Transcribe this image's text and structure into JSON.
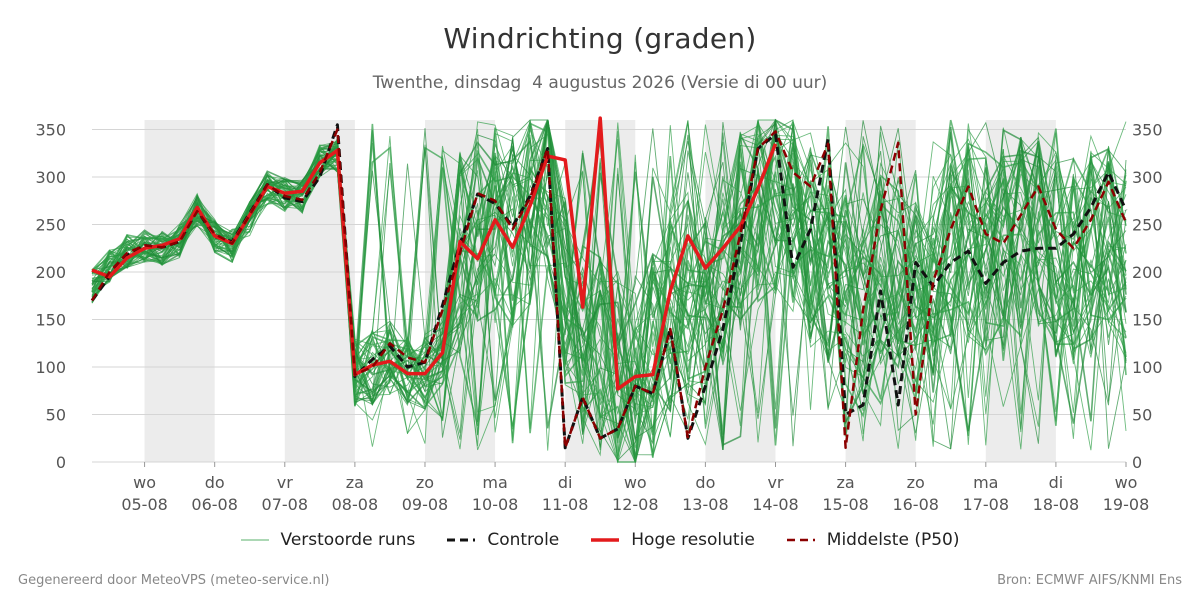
{
  "title": "Windrichting (graden)",
  "subtitle": "Twenthe, dinsdag  4 augustus 2026 (Versie di 00 uur)",
  "footer_left": "Gegenereerd door MeteoVPS (meteo-service.nl)",
  "footer_right": "Bron: ECMWF AIFS/KNMI Ens",
  "legend": [
    {
      "label": "Verstoorde runs",
      "style": "ensemble",
      "color": "#2e9e46"
    },
    {
      "label": "Controle",
      "style": "dashed",
      "color": "#111111"
    },
    {
      "label": "Hoge resolutie",
      "style": "solid",
      "color": "#e31a1c"
    },
    {
      "label": "Middelste (P50)",
      "style": "dashed",
      "color": "#8b0000"
    }
  ],
  "chart_data": {
    "type": "line",
    "ylim": [
      0,
      360
    ],
    "yticks": [
      0,
      50,
      100,
      150,
      200,
      250,
      300,
      350
    ],
    "xlim": [
      -0.75,
      14
    ],
    "x_ticks": [
      {
        "x": 0,
        "day": "wo",
        "date": "05-08"
      },
      {
        "x": 1,
        "day": "do",
        "date": "06-08"
      },
      {
        "x": 2,
        "day": "vr",
        "date": "07-08"
      },
      {
        "x": 3,
        "day": "za",
        "date": "08-08"
      },
      {
        "x": 4,
        "day": "zo",
        "date": "09-08"
      },
      {
        "x": 5,
        "day": "ma",
        "date": "10-08"
      },
      {
        "x": 6,
        "day": "di",
        "date": "11-08"
      },
      {
        "x": 7,
        "day": "wo",
        "date": "12-08"
      },
      {
        "x": 8,
        "day": "do",
        "date": "13-08"
      },
      {
        "x": 9,
        "day": "vr",
        "date": "14-08"
      },
      {
        "x": 10,
        "day": "za",
        "date": "15-08"
      },
      {
        "x": 11,
        "day": "zo",
        "date": "16-08"
      },
      {
        "x": 12,
        "day": "ma",
        "date": "17-08"
      },
      {
        "x": 13,
        "day": "di",
        "date": "18-08"
      },
      {
        "x": 14,
        "day": "wo",
        "date": "19-08"
      }
    ],
    "shaded_days": [
      [
        0,
        1
      ],
      [
        2,
        3
      ],
      [
        4,
        5
      ],
      [
        6,
        7
      ],
      [
        8,
        9
      ],
      [
        10,
        11
      ],
      [
        12,
        13
      ]
    ],
    "grid": true,
    "legend_position": "bottom",
    "ensemble_members": 50,
    "ensemble_mean": [
      [
        -0.75,
        185
      ],
      [
        -0.5,
        205
      ],
      [
        -0.25,
        222
      ],
      [
        0,
        226
      ],
      [
        0.25,
        225
      ],
      [
        0.5,
        233
      ],
      [
        0.75,
        266
      ],
      [
        1,
        238
      ],
      [
        1.25,
        228
      ],
      [
        1.5,
        256
      ],
      [
        1.75,
        288
      ],
      [
        2,
        282
      ],
      [
        2.25,
        280
      ],
      [
        2.5,
        318
      ],
      [
        2.75,
        322
      ],
      [
        3,
        92
      ],
      [
        3.25,
        100
      ],
      [
        3.5,
        110
      ],
      [
        3.75,
        98
      ],
      [
        4,
        95
      ],
      [
        4.25,
        120
      ],
      [
        4.5,
        220
      ],
      [
        4.75,
        255
      ],
      [
        5,
        250
      ],
      [
        5.25,
        245
      ],
      [
        5.5,
        270
      ],
      [
        5.75,
        300
      ],
      [
        6,
        190
      ],
      [
        6.25,
        120
      ],
      [
        6.5,
        110
      ],
      [
        6.75,
        100
      ],
      [
        7,
        95
      ],
      [
        7.25,
        110
      ],
      [
        7.5,
        160
      ],
      [
        7.75,
        180
      ],
      [
        8,
        170
      ],
      [
        8.25,
        210
      ],
      [
        8.5,
        240
      ],
      [
        8.75,
        270
      ],
      [
        9,
        280
      ],
      [
        9.25,
        260
      ],
      [
        9.5,
        230
      ],
      [
        9.75,
        210
      ],
      [
        10,
        190
      ],
      [
        10.25,
        180
      ],
      [
        10.5,
        200
      ],
      [
        10.75,
        190
      ],
      [
        11,
        170
      ],
      [
        11.25,
        180
      ],
      [
        11.5,
        220
      ],
      [
        11.75,
        230
      ],
      [
        12,
        220
      ],
      [
        12.25,
        210
      ],
      [
        12.5,
        230
      ],
      [
        12.75,
        240
      ],
      [
        13,
        220
      ],
      [
        13.25,
        210
      ],
      [
        13.5,
        220
      ],
      [
        13.75,
        230
      ],
      [
        14,
        200
      ]
    ],
    "series": [
      {
        "name": "Controle",
        "color": "#111111",
        "dash": "8,5",
        "width": 3,
        "points": [
          [
            -0.75,
            170
          ],
          [
            -0.5,
            195
          ],
          [
            -0.25,
            218
          ],
          [
            0,
            228
          ],
          [
            0.25,
            226
          ],
          [
            0.5,
            232
          ],
          [
            0.75,
            265
          ],
          [
            1,
            237
          ],
          [
            1.25,
            232
          ],
          [
            1.5,
            262
          ],
          [
            1.75,
            292
          ],
          [
            2,
            278
          ],
          [
            2.25,
            274
          ],
          [
            2.5,
            300
          ],
          [
            2.75,
            355
          ],
          [
            3,
            90
          ],
          [
            3.25,
            108
          ],
          [
            3.5,
            122
          ],
          [
            3.75,
            100
          ],
          [
            4,
            105
          ],
          [
            4.25,
            165
          ],
          [
            4.5,
            230
          ],
          [
            4.75,
            282
          ],
          [
            5,
            272
          ],
          [
            5.25,
            248
          ],
          [
            5.5,
            280
          ],
          [
            5.75,
            330
          ],
          [
            6,
            15
          ],
          [
            6.25,
            68
          ],
          [
            6.5,
            25
          ],
          [
            6.75,
            35
          ],
          [
            7,
            80
          ],
          [
            7.25,
            72
          ],
          [
            7.5,
            140
          ],
          [
            7.75,
            25
          ],
          [
            8,
            80
          ],
          [
            8.25,
            140
          ],
          [
            8.5,
            230
          ],
          [
            8.75,
            330
          ],
          [
            9,
            345
          ],
          [
            9.25,
            205
          ],
          [
            9.5,
            245
          ],
          [
            9.75,
            340
          ],
          [
            10,
            50
          ],
          [
            10.25,
            60
          ],
          [
            10.5,
            180
          ],
          [
            10.75,
            60
          ],
          [
            11,
            210
          ],
          [
            11.25,
            185
          ],
          [
            11.5,
            210
          ],
          [
            11.75,
            222
          ],
          [
            12,
            188
          ],
          [
            12.25,
            210
          ],
          [
            12.5,
            222
          ],
          [
            12.75,
            225
          ],
          [
            13,
            225
          ],
          [
            13.25,
            240
          ],
          [
            13.5,
            268
          ],
          [
            13.75,
            305
          ],
          [
            14,
            265
          ]
        ]
      },
      {
        "name": "Hoge resolutie",
        "color": "#e31a1c",
        "dash": "",
        "width": 3.5,
        "points": [
          [
            -0.75,
            202
          ],
          [
            -0.5,
            195
          ],
          [
            -0.25,
            215
          ],
          [
            0,
            225
          ],
          [
            0.25,
            228
          ],
          [
            0.5,
            235
          ],
          [
            0.75,
            268
          ],
          [
            1,
            238
          ],
          [
            1.25,
            230
          ],
          [
            1.5,
            260
          ],
          [
            1.75,
            290
          ],
          [
            2,
            283
          ],
          [
            2.25,
            285
          ],
          [
            2.5,
            315
          ],
          [
            2.75,
            328
          ],
          [
            3,
            92
          ],
          [
            3.25,
            102
          ],
          [
            3.5,
            106
          ],
          [
            3.75,
            93
          ],
          [
            4,
            93
          ],
          [
            4.25,
            115
          ],
          [
            4.5,
            232
          ],
          [
            4.75,
            214
          ],
          [
            5,
            255
          ],
          [
            5.25,
            226
          ],
          [
            5.5,
            270
          ],
          [
            5.75,
            322
          ],
          [
            6,
            318
          ],
          [
            6.25,
            163
          ],
          [
            6.5,
            362
          ],
          [
            6.75,
            77
          ],
          [
            7,
            90
          ],
          [
            7.25,
            92
          ],
          [
            7.5,
            180
          ],
          [
            7.75,
            238
          ],
          [
            8,
            204
          ],
          [
            8.25,
            225
          ],
          [
            8.5,
            248
          ],
          [
            8.75,
            288
          ],
          [
            9,
            335
          ]
        ]
      },
      {
        "name": "Middelste (P50)",
        "color": "#8b0000",
        "dash": "8,5",
        "width": 2.5,
        "points": [
          [
            -0.75,
            170
          ],
          [
            -0.5,
            200
          ],
          [
            -0.25,
            220
          ],
          [
            0,
            228
          ],
          [
            0.25,
            226
          ],
          [
            0.5,
            232
          ],
          [
            0.75,
            264
          ],
          [
            1,
            240
          ],
          [
            1.25,
            230
          ],
          [
            1.5,
            260
          ],
          [
            1.75,
            292
          ],
          [
            2,
            280
          ],
          [
            2.25,
            276
          ],
          [
            2.5,
            305
          ],
          [
            2.75,
            350
          ],
          [
            3,
            92
          ],
          [
            3.25,
            100
          ],
          [
            3.5,
            125
          ],
          [
            3.75,
            110
          ],
          [
            4,
            105
          ],
          [
            4.25,
            160
          ],
          [
            4.5,
            220
          ],
          [
            4.75,
            283
          ],
          [
            5,
            275
          ],
          [
            5.25,
            245
          ],
          [
            5.5,
            278
          ],
          [
            5.75,
            330
          ],
          [
            6,
            15
          ],
          [
            6.25,
            68
          ],
          [
            6.5,
            25
          ],
          [
            6.75,
            35
          ],
          [
            7,
            80
          ],
          [
            7.25,
            72
          ],
          [
            7.5,
            140
          ],
          [
            7.75,
            25
          ],
          [
            8,
            100
          ],
          [
            8.25,
            160
          ],
          [
            8.5,
            240
          ],
          [
            8.75,
            330
          ],
          [
            9,
            348
          ],
          [
            9.25,
            305
          ],
          [
            9.5,
            290
          ],
          [
            9.75,
            335
          ],
          [
            10,
            15
          ],
          [
            10.25,
            160
          ],
          [
            10.5,
            265
          ],
          [
            10.75,
            336
          ],
          [
            11,
            50
          ],
          [
            11.25,
            190
          ],
          [
            11.5,
            245
          ],
          [
            11.75,
            290
          ],
          [
            12,
            240
          ],
          [
            12.25,
            230
          ],
          [
            12.5,
            260
          ],
          [
            12.75,
            290
          ],
          [
            13,
            245
          ],
          [
            13.25,
            225
          ],
          [
            13.5,
            255
          ],
          [
            13.75,
            295
          ],
          [
            14,
            252
          ]
        ]
      }
    ]
  }
}
